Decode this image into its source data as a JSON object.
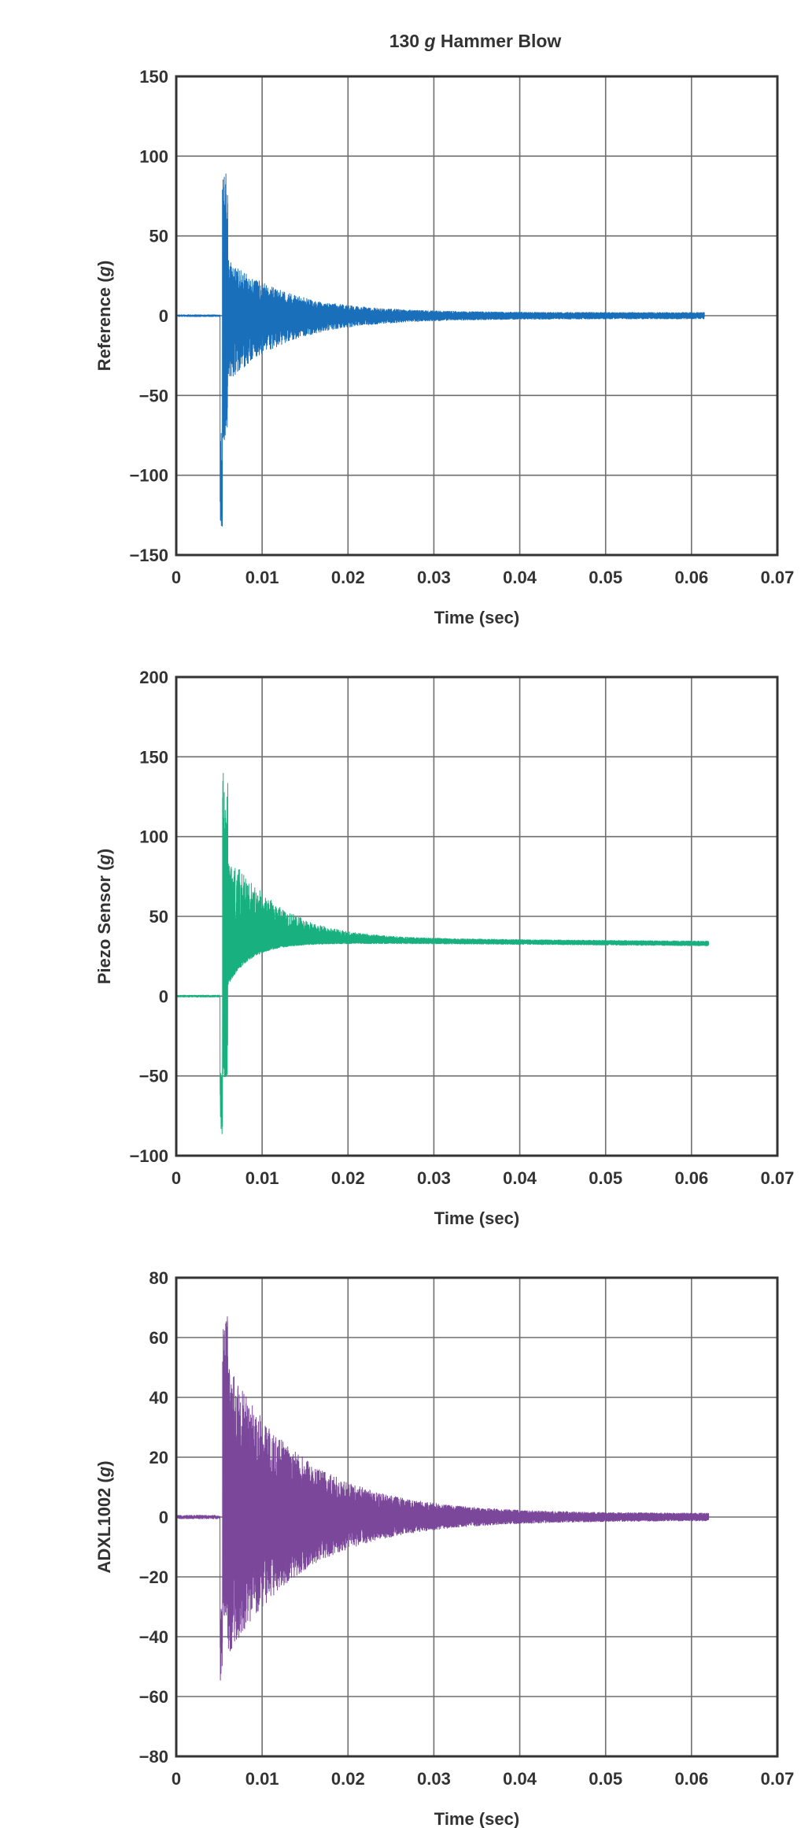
{
  "figure_title": "130 g Hammer Blow",
  "figure_title_prefix": "130 ",
  "figure_title_italic": "g",
  "figure_title_suffix": " Hammer Blow",
  "chart_data": [
    {
      "type": "line",
      "xlabel": "Time (sec)",
      "ylabel": "Reference (g)",
      "ylabel_prefix": "Reference (",
      "ylabel_italic": "g",
      "ylabel_suffix": ")",
      "xlim": [
        0,
        0.07
      ],
      "ylim": [
        -150,
        150
      ],
      "xticks": [
        0,
        0.01,
        0.02,
        0.03,
        0.04,
        0.05,
        0.06,
        0.07
      ],
      "xtick_labels": [
        "0",
        "0.01",
        "0.02",
        "0.03",
        "0.04",
        "0.05",
        "0.06",
        "0.07"
      ],
      "yticks": [
        150,
        100,
        50,
        0,
        -50,
        -100,
        -150
      ],
      "ytick_labels": [
        "150",
        "100",
        "50",
        "0",
        "−50",
        "−100",
        "−150"
      ],
      "grid": true,
      "color": "#1a6fba",
      "series": [
        {
          "name": "",
          "baseline": 0,
          "t_start": 0,
          "t_impact": 0.0051,
          "t_end": 0.0615,
          "peak_pos": 89,
          "peak_neg": -132,
          "settle_pos": 38,
          "settle_neg": -45,
          "tail_amplitude": 2,
          "decay_tau": 0.007,
          "centre_offset": 0
        }
      ]
    },
    {
      "type": "line",
      "xlabel": "Time (sec)",
      "ylabel": "Piezo Sensor (g)",
      "ylabel_prefix": "Piezo Sensor (",
      "ylabel_italic": "g",
      "ylabel_suffix": ")",
      "xlim": [
        0,
        0.07
      ],
      "ylim": [
        -100,
        200
      ],
      "xticks": [
        0,
        0.01,
        0.02,
        0.03,
        0.04,
        0.05,
        0.06,
        0.07
      ],
      "xtick_labels": [
        "0",
        "0.01",
        "0.02",
        "0.03",
        "0.04",
        "0.05",
        "0.06",
        "0.07"
      ],
      "yticks": [
        200,
        150,
        100,
        50,
        0,
        -50,
        -100
      ],
      "ytick_labels": [
        "200",
        "150",
        "100",
        "50",
        "0",
        "−50",
        "−100"
      ],
      "grid": true,
      "color": "#17b07e",
      "series": [
        {
          "name": "",
          "baseline": 0,
          "t_start": 0,
          "t_impact": 0.0051,
          "t_end": 0.062,
          "peak_pos": 141,
          "peak_neg": -88,
          "settle_pos": 88,
          "settle_neg": -5,
          "tail_amplitude": 1.5,
          "decay_tau": 0.005,
          "centre_offset": 33
        }
      ]
    },
    {
      "type": "line",
      "xlabel": "Time (sec)",
      "ylabel": "ADXL1002 (g)",
      "ylabel_prefix": "ADXL1002 (",
      "ylabel_italic": "g",
      "ylabel_suffix": ")",
      "xlim": [
        0,
        0.07
      ],
      "ylim": [
        -80,
        80
      ],
      "xticks": [
        0,
        0.01,
        0.02,
        0.03,
        0.04,
        0.05,
        0.06,
        0.07
      ],
      "xtick_labels": [
        "0",
        "0.01",
        "0.02",
        "0.03",
        "0.04",
        "0.05",
        "0.06",
        "0.07"
      ],
      "yticks": [
        80,
        60,
        40,
        20,
        0,
        -20,
        -40,
        -60,
        -80
      ],
      "ytick_labels": [
        "80",
        "60",
        "40",
        "20",
        "0",
        "−20",
        "−40",
        "−60",
        "−80"
      ],
      "grid": true,
      "color": "#7b479b",
      "series": [
        {
          "name": "",
          "baseline": 0,
          "t_start": 0,
          "t_impact": 0.0051,
          "t_end": 0.062,
          "peak_pos": 68,
          "peak_neg": -55,
          "settle_pos": 55,
          "settle_neg": -50,
          "tail_amplitude": 1.2,
          "decay_tau": 0.009,
          "centre_offset": 0
        }
      ]
    }
  ]
}
